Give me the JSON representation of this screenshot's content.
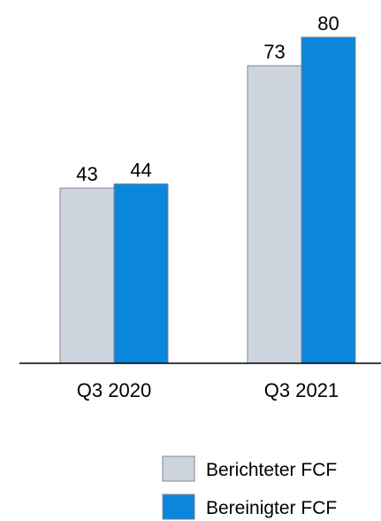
{
  "chart_data": {
    "type": "bar",
    "categories": [
      "Q3 2020",
      "Q3 2021"
    ],
    "series": [
      {
        "name": "Berichteter FCF",
        "values": [
          43,
          73
        ],
        "color": "#cdd4dd"
      },
      {
        "name": "Bereinigter FCF",
        "values": [
          44,
          80
        ],
        "color": "#0a86dc"
      }
    ],
    "ylim": [
      0,
      80
    ],
    "grid": false,
    "legend_position": "bottom-right",
    "data_labels": true
  }
}
